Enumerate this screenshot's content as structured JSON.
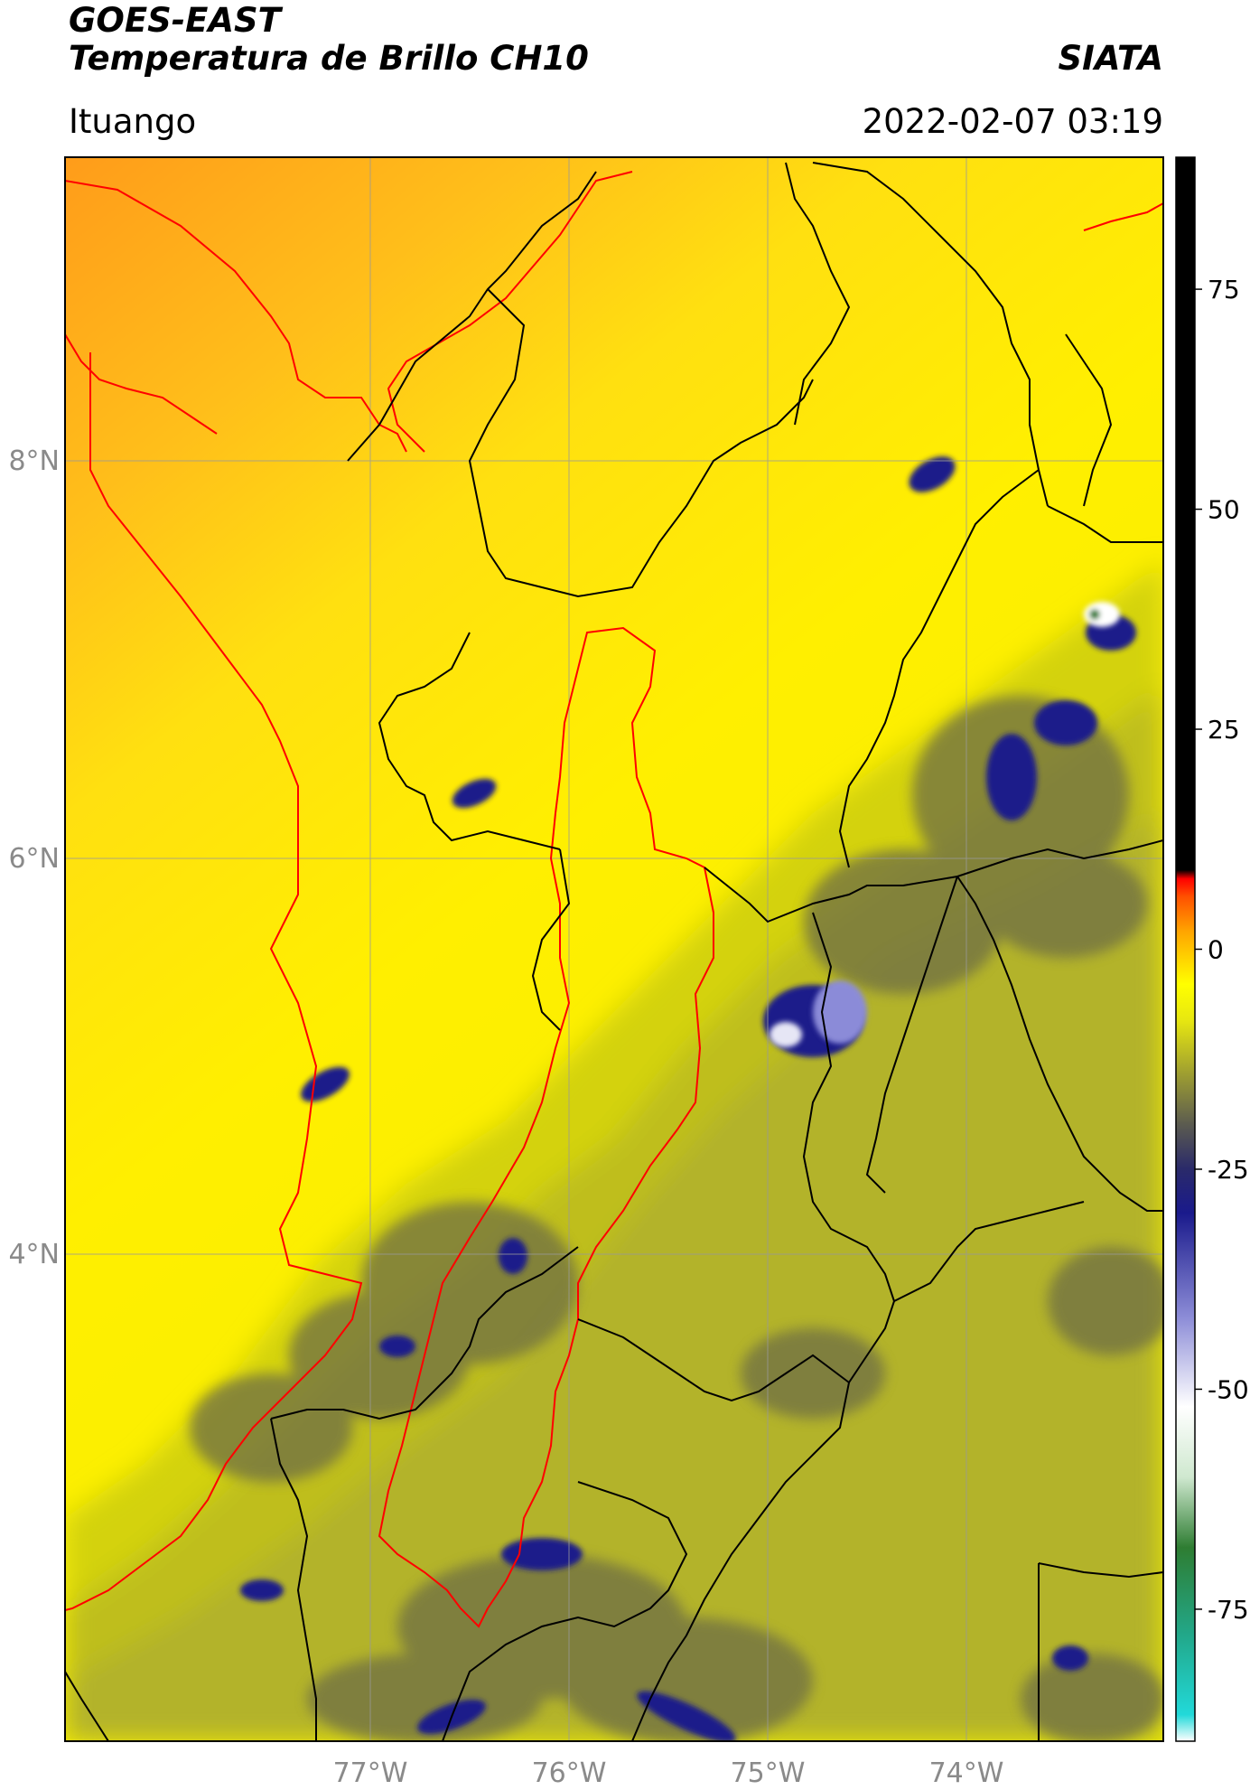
{
  "header": {
    "satellite": "GOES-EAST",
    "product": "Temperatura de Brillo CH10",
    "org": "SIATA",
    "region": "Ituango",
    "datetime": "2022-02-07 03:19"
  },
  "axes": {
    "lon_ticks": [
      "77°W",
      "76°W",
      "75°W",
      "74°W"
    ],
    "lat_ticks": [
      "8°N",
      "6°N",
      "4°N"
    ]
  },
  "colorbar": {
    "ticks": [
      "75",
      "50",
      "25",
      "0",
      "-25",
      "-50",
      "-75"
    ],
    "tick_values": [
      75,
      50,
      25,
      0,
      -25,
      -50,
      -75
    ],
    "range": [
      -90,
      90
    ],
    "stops": [
      {
        "value": -90,
        "color": "#ffffff"
      },
      {
        "value": -87,
        "color": "#22d9d9"
      },
      {
        "value": -78,
        "color": "#22a88a"
      },
      {
        "value": -68,
        "color": "#2e7d32"
      },
      {
        "value": -60,
        "color": "#cfe8cf"
      },
      {
        "value": -52,
        "color": "#ffffff"
      },
      {
        "value": -42,
        "color": "#8e8ed8"
      },
      {
        "value": -30,
        "color": "#1a1a8c"
      },
      {
        "value": -25,
        "color": "#2a2a6a"
      },
      {
        "value": -20,
        "color": "#5a5a50"
      },
      {
        "value": -14,
        "color": "#a0a030"
      },
      {
        "value": -8,
        "color": "#e8e810"
      },
      {
        "value": -4,
        "color": "#ffff00"
      },
      {
        "value": 2,
        "color": "#ffa500"
      },
      {
        "value": 6,
        "color": "#ff5000"
      },
      {
        "value": 8,
        "color": "#ff0000"
      },
      {
        "value": 9,
        "color": "#000000"
      },
      {
        "value": 90,
        "color": "#000000"
      }
    ]
  },
  "colors": {
    "boundary_black": "#000000",
    "coast_red": "#ff0000",
    "grid": "#999999",
    "warm": "#ff9c1a",
    "neutral": "#ffeb00",
    "cool": "#b5b522",
    "cold": "#1c1c8a"
  }
}
